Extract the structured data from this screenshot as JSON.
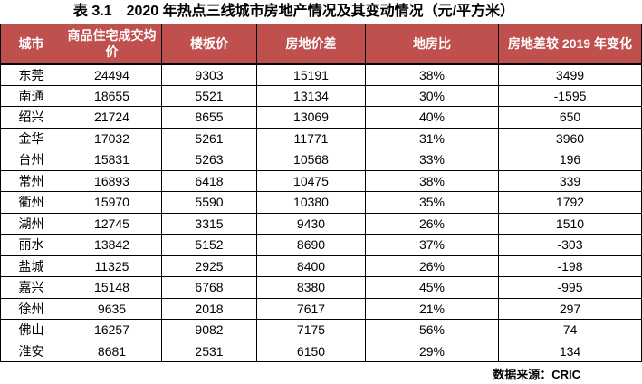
{
  "page": {
    "title": "表 3.1　2020 年热点三线城市房地产情况及其变动情况（元/平方米）",
    "source_note": "数据来源：CRIC"
  },
  "colors": {
    "header_bg": "#C0504D",
    "header_text": "#FFFFFF",
    "border": "#000000",
    "body_text": "#000000"
  },
  "table": {
    "columns": [
      "城市",
      "商品住宅成交均价",
      "楼板价",
      "房地价差",
      "地房比",
      "房地差较 2019 年变化"
    ],
    "rows": [
      [
        "东莞",
        "24494",
        "9303",
        "15191",
        "38%",
        "3499"
      ],
      [
        "南通",
        "18655",
        "5521",
        "13134",
        "30%",
        "-1595"
      ],
      [
        "绍兴",
        "21724",
        "8655",
        "13069",
        "40%",
        "650"
      ],
      [
        "金华",
        "17032",
        "5261",
        "11771",
        "31%",
        "3960"
      ],
      [
        "台州",
        "15831",
        "5263",
        "10568",
        "33%",
        "196"
      ],
      [
        "常州",
        "16893",
        "6418",
        "10475",
        "38%",
        "339"
      ],
      [
        "衢州",
        "15970",
        "5590",
        "10380",
        "35%",
        "1792"
      ],
      [
        "湖州",
        "12745",
        "3315",
        "9430",
        "26%",
        "1510"
      ],
      [
        "丽水",
        "13842",
        "5152",
        "8690",
        "37%",
        "-303"
      ],
      [
        "盐城",
        "11325",
        "2925",
        "8400",
        "26%",
        "-198"
      ],
      [
        "嘉兴",
        "15148",
        "6768",
        "8380",
        "45%",
        "-995"
      ],
      [
        "徐州",
        "9635",
        "2018",
        "7617",
        "21%",
        "297"
      ],
      [
        "佛山",
        "16257",
        "9082",
        "7175",
        "56%",
        "74"
      ],
      [
        "淮安",
        "8681",
        "2531",
        "6150",
        "29%",
        "134"
      ]
    ]
  }
}
